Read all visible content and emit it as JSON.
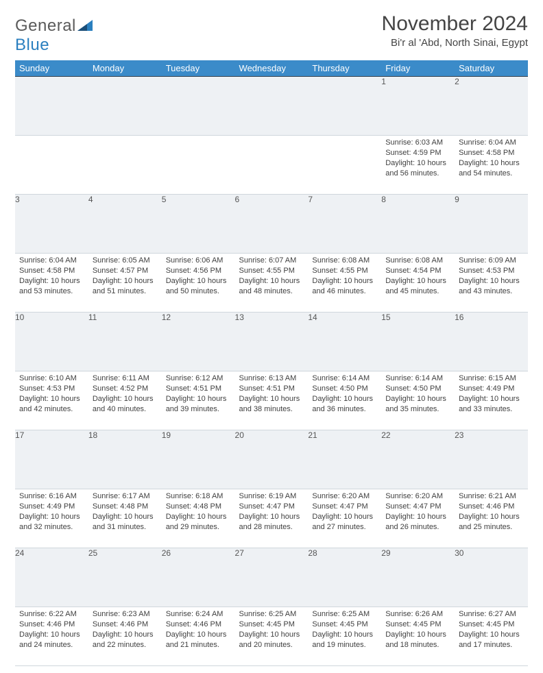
{
  "logo": {
    "general": "General",
    "blue": "Blue"
  },
  "title": "November 2024",
  "location": "Bi'r al 'Abd, North Sinai, Egypt",
  "colors": {
    "header_bg": "#3b8bc9",
    "header_text": "#ffffff",
    "daynum_bg": "#eef1f4",
    "daynum_text": "#555555",
    "cell_text": "#404040",
    "rule": "#2d3c4a",
    "logo_gray": "#5a5a5a",
    "logo_blue": "#2a7fbf"
  },
  "day_headers": [
    "Sunday",
    "Monday",
    "Tuesday",
    "Wednesday",
    "Thursday",
    "Friday",
    "Saturday"
  ],
  "weeks": [
    [
      {
        "n": "",
        "lines": []
      },
      {
        "n": "",
        "lines": []
      },
      {
        "n": "",
        "lines": []
      },
      {
        "n": "",
        "lines": []
      },
      {
        "n": "",
        "lines": []
      },
      {
        "n": "1",
        "lines": [
          "Sunrise: 6:03 AM",
          "Sunset: 4:59 PM",
          "Daylight: 10 hours and 56 minutes."
        ]
      },
      {
        "n": "2",
        "lines": [
          "Sunrise: 6:04 AM",
          "Sunset: 4:58 PM",
          "Daylight: 10 hours and 54 minutes."
        ]
      }
    ],
    [
      {
        "n": "3",
        "lines": [
          "Sunrise: 6:04 AM",
          "Sunset: 4:58 PM",
          "Daylight: 10 hours and 53 minutes."
        ]
      },
      {
        "n": "4",
        "lines": [
          "Sunrise: 6:05 AM",
          "Sunset: 4:57 PM",
          "Daylight: 10 hours and 51 minutes."
        ]
      },
      {
        "n": "5",
        "lines": [
          "Sunrise: 6:06 AM",
          "Sunset: 4:56 PM",
          "Daylight: 10 hours and 50 minutes."
        ]
      },
      {
        "n": "6",
        "lines": [
          "Sunrise: 6:07 AM",
          "Sunset: 4:55 PM",
          "Daylight: 10 hours and 48 minutes."
        ]
      },
      {
        "n": "7",
        "lines": [
          "Sunrise: 6:08 AM",
          "Sunset: 4:55 PM",
          "Daylight: 10 hours and 46 minutes."
        ]
      },
      {
        "n": "8",
        "lines": [
          "Sunrise: 6:08 AM",
          "Sunset: 4:54 PM",
          "Daylight: 10 hours and 45 minutes."
        ]
      },
      {
        "n": "9",
        "lines": [
          "Sunrise: 6:09 AM",
          "Sunset: 4:53 PM",
          "Daylight: 10 hours and 43 minutes."
        ]
      }
    ],
    [
      {
        "n": "10",
        "lines": [
          "Sunrise: 6:10 AM",
          "Sunset: 4:53 PM",
          "Daylight: 10 hours and 42 minutes."
        ]
      },
      {
        "n": "11",
        "lines": [
          "Sunrise: 6:11 AM",
          "Sunset: 4:52 PM",
          "Daylight: 10 hours and 40 minutes."
        ]
      },
      {
        "n": "12",
        "lines": [
          "Sunrise: 6:12 AM",
          "Sunset: 4:51 PM",
          "Daylight: 10 hours and 39 minutes."
        ]
      },
      {
        "n": "13",
        "lines": [
          "Sunrise: 6:13 AM",
          "Sunset: 4:51 PM",
          "Daylight: 10 hours and 38 minutes."
        ]
      },
      {
        "n": "14",
        "lines": [
          "Sunrise: 6:14 AM",
          "Sunset: 4:50 PM",
          "Daylight: 10 hours and 36 minutes."
        ]
      },
      {
        "n": "15",
        "lines": [
          "Sunrise: 6:14 AM",
          "Sunset: 4:50 PM",
          "Daylight: 10 hours and 35 minutes."
        ]
      },
      {
        "n": "16",
        "lines": [
          "Sunrise: 6:15 AM",
          "Sunset: 4:49 PM",
          "Daylight: 10 hours and 33 minutes."
        ]
      }
    ],
    [
      {
        "n": "17",
        "lines": [
          "Sunrise: 6:16 AM",
          "Sunset: 4:49 PM",
          "Daylight: 10 hours and 32 minutes."
        ]
      },
      {
        "n": "18",
        "lines": [
          "Sunrise: 6:17 AM",
          "Sunset: 4:48 PM",
          "Daylight: 10 hours and 31 minutes."
        ]
      },
      {
        "n": "19",
        "lines": [
          "Sunrise: 6:18 AM",
          "Sunset: 4:48 PM",
          "Daylight: 10 hours and 29 minutes."
        ]
      },
      {
        "n": "20",
        "lines": [
          "Sunrise: 6:19 AM",
          "Sunset: 4:47 PM",
          "Daylight: 10 hours and 28 minutes."
        ]
      },
      {
        "n": "21",
        "lines": [
          "Sunrise: 6:20 AM",
          "Sunset: 4:47 PM",
          "Daylight: 10 hours and 27 minutes."
        ]
      },
      {
        "n": "22",
        "lines": [
          "Sunrise: 6:20 AM",
          "Sunset: 4:47 PM",
          "Daylight: 10 hours and 26 minutes."
        ]
      },
      {
        "n": "23",
        "lines": [
          "Sunrise: 6:21 AM",
          "Sunset: 4:46 PM",
          "Daylight: 10 hours and 25 minutes."
        ]
      }
    ],
    [
      {
        "n": "24",
        "lines": [
          "Sunrise: 6:22 AM",
          "Sunset: 4:46 PM",
          "Daylight: 10 hours and 24 minutes."
        ]
      },
      {
        "n": "25",
        "lines": [
          "Sunrise: 6:23 AM",
          "Sunset: 4:46 PM",
          "Daylight: 10 hours and 22 minutes."
        ]
      },
      {
        "n": "26",
        "lines": [
          "Sunrise: 6:24 AM",
          "Sunset: 4:46 PM",
          "Daylight: 10 hours and 21 minutes."
        ]
      },
      {
        "n": "27",
        "lines": [
          "Sunrise: 6:25 AM",
          "Sunset: 4:45 PM",
          "Daylight: 10 hours and 20 minutes."
        ]
      },
      {
        "n": "28",
        "lines": [
          "Sunrise: 6:25 AM",
          "Sunset: 4:45 PM",
          "Daylight: 10 hours and 19 minutes."
        ]
      },
      {
        "n": "29",
        "lines": [
          "Sunrise: 6:26 AM",
          "Sunset: 4:45 PM",
          "Daylight: 10 hours and 18 minutes."
        ]
      },
      {
        "n": "30",
        "lines": [
          "Sunrise: 6:27 AM",
          "Sunset: 4:45 PM",
          "Daylight: 10 hours and 17 minutes."
        ]
      }
    ]
  ]
}
